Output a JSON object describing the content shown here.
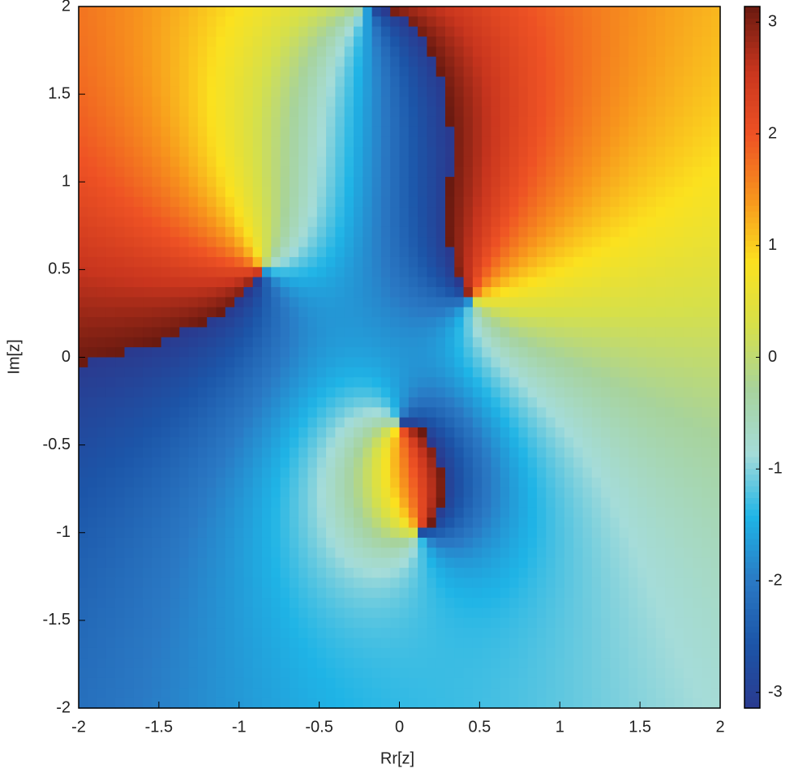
{
  "chart_data": {
    "type": "phase",
    "xlabel": "Rr[z]",
    "ylabel": "Im[z]",
    "xlim": [
      -2,
      2
    ],
    "ylim": [
      -2,
      2
    ],
    "xticks": [
      -2,
      -1.5,
      -1,
      -0.5,
      0,
      0.5,
      1,
      1.5,
      2
    ],
    "yticks": [
      -2,
      -1.5,
      -1,
      -0.5,
      0,
      0.5,
      1,
      1.5,
      2
    ],
    "zeros": [
      [
        0,
        -0.38
      ],
      [
        0.45,
        0.33
      ],
      [
        -0.85,
        0.5
      ]
    ],
    "poles": [
      [
        0.13,
        -1.0
      ],
      [
        -0.2,
        2.0
      ]
    ],
    "clim": [
      -3.14,
      3.14
    ],
    "cticks": [
      -3,
      -2,
      -1,
      0,
      1,
      2,
      3
    ],
    "colormap": [
      "#2a3a8f",
      "#1c55a8",
      "#2a79c4",
      "#1fb4e6",
      "#a5dcd9",
      "#a7d39c",
      "#d6e04a",
      "#fbe11f",
      "#f7941d",
      "#ee5224",
      "#c8351e",
      "#6a1a10"
    ]
  }
}
